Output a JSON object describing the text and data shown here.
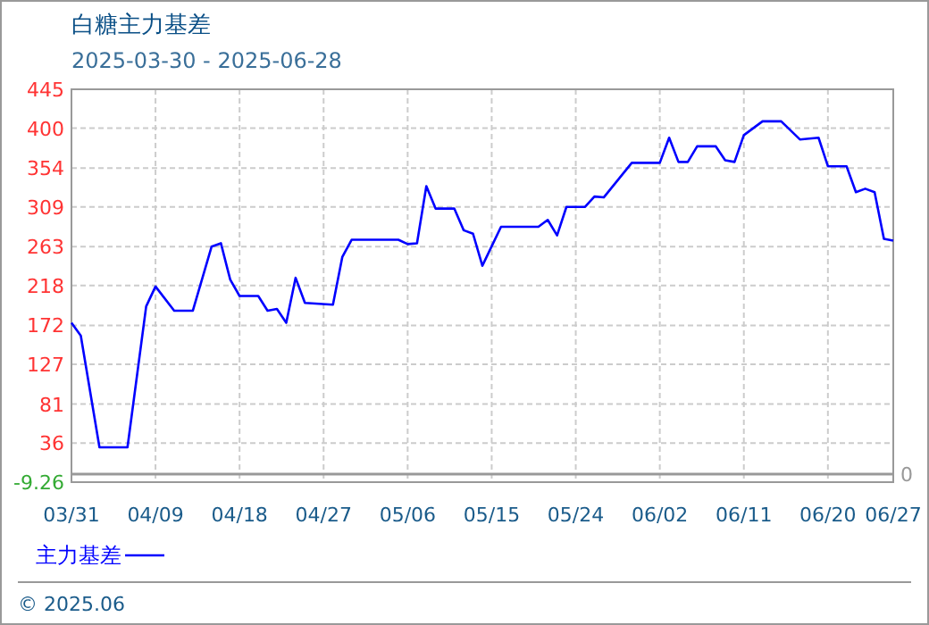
{
  "chart_data": {
    "type": "line",
    "title": "白糖主力基差",
    "subtitle": "2025-03-30 - 2025-06-28",
    "x": [
      "2025-03-31",
      "2025-04-01",
      "2025-04-03",
      "2025-04-06",
      "2025-04-08",
      "2025-04-09",
      "2025-04-11",
      "2025-04-13",
      "2025-04-15",
      "2025-04-16",
      "2025-04-17",
      "2025-04-18",
      "2025-04-20",
      "2025-04-21",
      "2025-04-22",
      "2025-04-23",
      "2025-04-24",
      "2025-04-25",
      "2025-04-28",
      "2025-04-29",
      "2025-04-30",
      "2025-05-05",
      "2025-05-06",
      "2025-05-07",
      "2025-05-08",
      "2025-05-09",
      "2025-05-11",
      "2025-05-12",
      "2025-05-13",
      "2025-05-14",
      "2025-05-16",
      "2025-05-18",
      "2025-05-20",
      "2025-05-21",
      "2025-05-22",
      "2025-05-23",
      "2025-05-25",
      "2025-05-26",
      "2025-05-27",
      "2025-05-30",
      "2025-06-02",
      "2025-06-03",
      "2025-06-04",
      "2025-06-05",
      "2025-06-06",
      "2025-06-08",
      "2025-06-09",
      "2025-06-10",
      "2025-06-11",
      "2025-06-13",
      "2025-06-15",
      "2025-06-17",
      "2025-06-19",
      "2025-06-20",
      "2025-06-22",
      "2025-06-23",
      "2025-06-24",
      "2025-06-25",
      "2025-06-26",
      "2025-06-27"
    ],
    "series": [
      {
        "name": "主力基差",
        "color": "#0000ff",
        "values": [
          175,
          160,
          31,
          31,
          194,
          217,
          189,
          189,
          263,
          267,
          225,
          206,
          206,
          189,
          191,
          175,
          227,
          198,
          196,
          251,
          271,
          271,
          266,
          267,
          333,
          307,
          307,
          282,
          278,
          241,
          286,
          286,
          286,
          294,
          276,
          309,
          309,
          321,
          320,
          360,
          360,
          389,
          361,
          361,
          379,
          379,
          363,
          361,
          392,
          408,
          408,
          387,
          389,
          356,
          356,
          326,
          330,
          326,
          272,
          270
        ]
      }
    ],
    "xlim": [
      "2025-03-31",
      "2025-06-27"
    ],
    "xticks": [
      {
        "value": "2025-03-31",
        "label": "03/31"
      },
      {
        "value": "2025-04-09",
        "label": "04/09"
      },
      {
        "value": "2025-04-18",
        "label": "04/18"
      },
      {
        "value": "2025-04-27",
        "label": "04/27"
      },
      {
        "value": "2025-05-06",
        "label": "05/06"
      },
      {
        "value": "2025-05-15",
        "label": "05/15"
      },
      {
        "value": "2025-05-24",
        "label": "05/24"
      },
      {
        "value": "2025-06-02",
        "label": "06/02"
      },
      {
        "value": "2025-06-11",
        "label": "06/11"
      },
      {
        "value": "2025-06-20",
        "label": "06/20"
      },
      {
        "value": "2025-06-27",
        "label": "06/27"
      }
    ],
    "ylim": [
      -9.26,
      445
    ],
    "yticks": [
      -9.26,
      36,
      81,
      127,
      172,
      218,
      263,
      309,
      354,
      400,
      445
    ],
    "ref_lines": [
      {
        "axis": "y",
        "value": 0,
        "label": "0",
        "color": "#999999"
      }
    ],
    "grid": true,
    "legend": "bottom left",
    "annotations": [
      "© 2025.06"
    ]
  }
}
